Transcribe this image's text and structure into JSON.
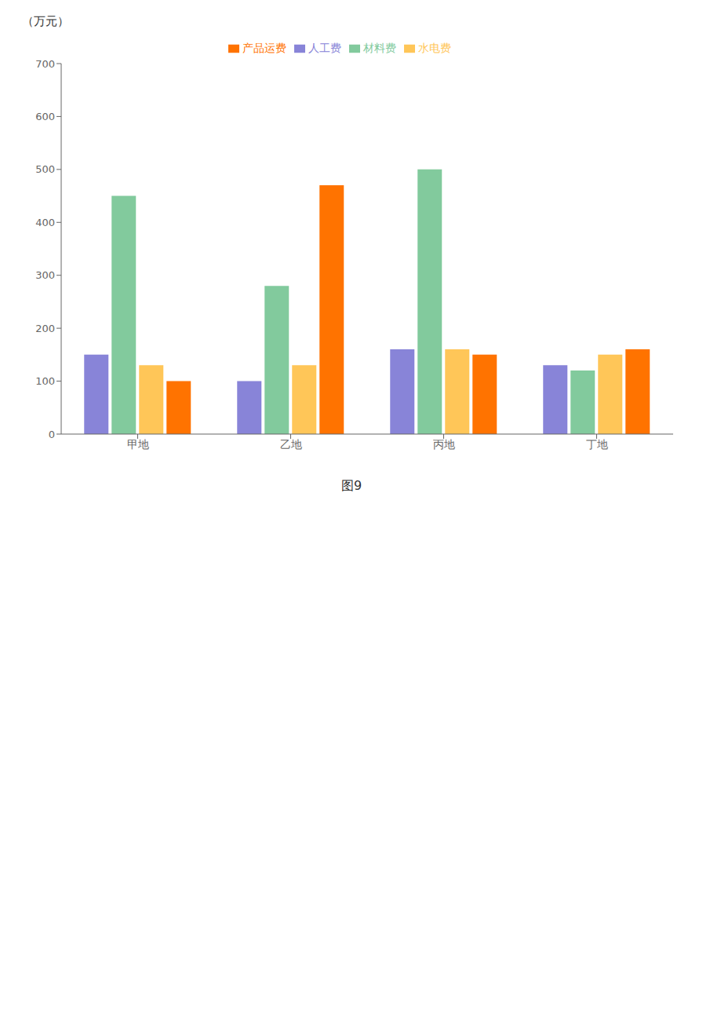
{
  "chart_data": {
    "type": "bar",
    "title": "（万元）",
    "categories": [
      "甲地",
      "乙地",
      "丙地",
      "丁地"
    ],
    "series": [
      {
        "name": "人工费",
        "values": [
          150,
          100,
          160,
          130
        ]
      },
      {
        "name": "材料费",
        "values": [
          450,
          280,
          500,
          120
        ]
      },
      {
        "name": "水电费",
        "values": [
          130,
          130,
          160,
          150
        ]
      },
      {
        "name": "产品运费",
        "values": [
          100,
          470,
          150,
          160
        ]
      }
    ],
    "ylim": [
      0,
      700
    ],
    "yticks": [
      0,
      100,
      200,
      300,
      400,
      500,
      600,
      700
    ],
    "grid": false,
    "legend": "top",
    "annotations": [
      "图9"
    ]
  }
}
